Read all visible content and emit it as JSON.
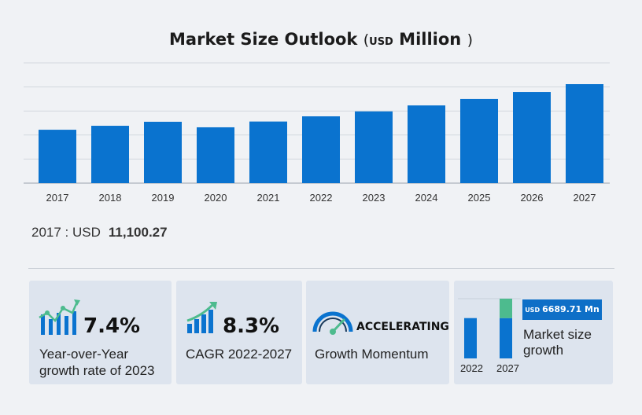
{
  "header": {
    "title": "Market Size Outlook",
    "unit_open": "(",
    "unit_currency": "USD",
    "unit_scale": "Million",
    "unit_close": ")"
  },
  "chart_data": {
    "type": "bar",
    "title": "Market Size Outlook ( USD Million )",
    "categories": [
      "2017",
      "2018",
      "2019",
      "2020",
      "2021",
      "2022",
      "2023",
      "2024",
      "2025",
      "2026",
      "2027"
    ],
    "values": [
      11100.27,
      11924.0,
      12759.0,
      11607.0,
      12807.0,
      13889.0,
      14917.0,
      16155.0,
      17495.0,
      18947.0,
      20579.0
    ],
    "ylim": [
      0,
      25000
    ],
    "grid": true,
    "color": "#0a73cf"
  },
  "base_year": {
    "label": "2017 : USD",
    "value": "11,100.27"
  },
  "cards": [
    {
      "metric": "7.4%",
      "desc_line1": "Year-over-Year",
      "desc_line2": "growth rate of 2023",
      "icon": "growth-chart-icon"
    },
    {
      "metric": "8.3%",
      "desc_line1": "CAGR 2022-2027",
      "icon": "trend-bars-icon"
    },
    {
      "metric": "ACCELERATING",
      "desc_line1": "Growth Momentum",
      "icon": "speedometer-icon"
    },
    {
      "badge_currency": "USD",
      "badge_value": "6689.71 Mn",
      "desc_line1": "Market size",
      "desc_line2": "growth",
      "mini_categories": [
        "2022",
        "2027"
      ],
      "mini_values": [
        13889,
        20579
      ],
      "colors": {
        "base": "#0a73cf",
        "growth": "#4dbb8e"
      }
    }
  ]
}
